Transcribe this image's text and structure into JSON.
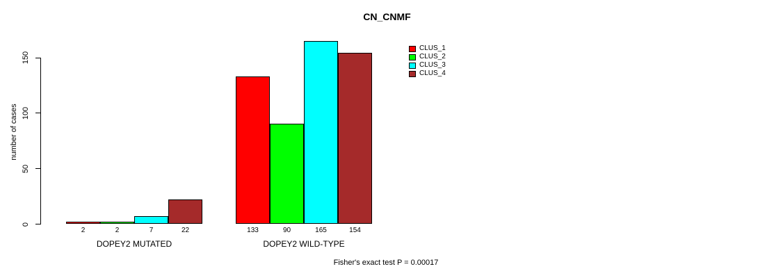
{
  "chart_data": {
    "type": "bar",
    "title": "CN_CNMF",
    "xlabel": "",
    "ylabel": "number of cases",
    "ylim": [
      0,
      165
    ],
    "yticks": [
      0,
      50,
      100,
      150
    ],
    "categories": [
      "DOPEY2 MUTATED",
      "DOPEY2 WILD-TYPE"
    ],
    "series": [
      {
        "name": "CLUS_1",
        "color": "#ff0000",
        "values": [
          2,
          133
        ]
      },
      {
        "name": "CLUS_2",
        "color": "#00ff00",
        "values": [
          2,
          90
        ]
      },
      {
        "name": "CLUS_3",
        "color": "#00ffff",
        "values": [
          7,
          165
        ]
      },
      {
        "name": "CLUS_4",
        "color": "#a52a2a",
        "values": [
          22,
          154
        ]
      }
    ],
    "bar_value_labels": [
      [
        2,
        2,
        7,
        22
      ],
      [
        133,
        90,
        165,
        154
      ]
    ],
    "legend_entries": [
      "CLUS_1",
      "CLUS_2",
      "CLUS_3",
      "CLUS_4"
    ],
    "legend_position": "top-right",
    "grid": false,
    "annotation": "Fisher's exact test P = 0.00017"
  },
  "colors": {
    "background": "#ffffff",
    "axis": "#000000",
    "text": "#000000",
    "bar_border": "#000000"
  }
}
